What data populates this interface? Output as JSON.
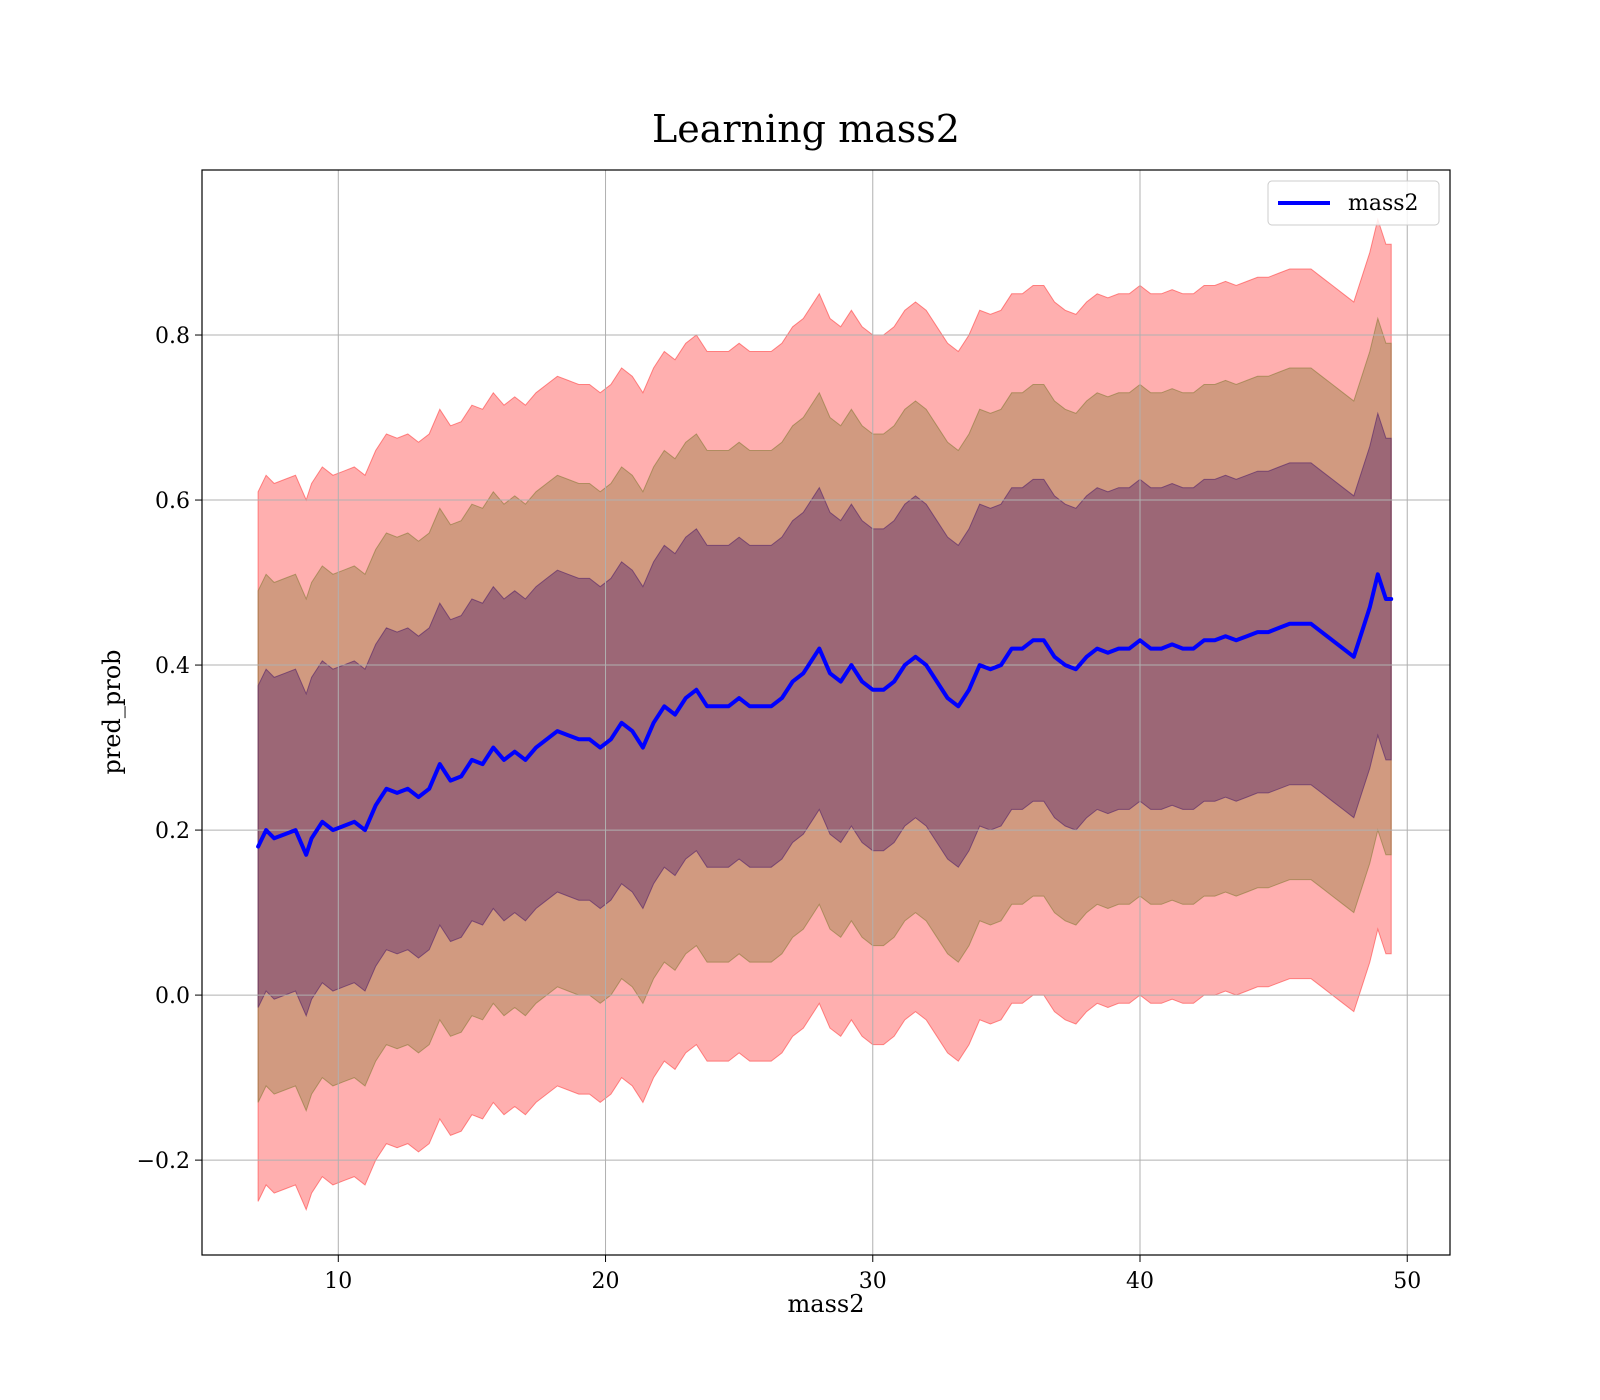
{
  "chart_data": {
    "type": "line",
    "title": "Learning mass2",
    "xlabel": "mass2",
    "ylabel": "pred_prob",
    "xlim": [
      4.9,
      51.6
    ],
    "ylim": [
      -0.315,
      1.0
    ],
    "xticks": [
      10,
      20,
      30,
      40,
      50
    ],
    "xtick_labels": [
      "10",
      "20",
      "30",
      "40",
      "50"
    ],
    "yticks": [
      -0.2,
      0.0,
      0.2,
      0.4,
      0.6,
      0.8
    ],
    "ytick_labels": [
      "−0.2",
      "0.0",
      "0.2",
      "0.4",
      "0.6",
      "0.8"
    ],
    "grid": true,
    "legend_position": "top-right",
    "series": [
      {
        "name": "mass2",
        "color": "#0000ff",
        "x": [
          7.0,
          7.3,
          7.6,
          8.0,
          8.4,
          8.8,
          9.0,
          9.4,
          9.8,
          10.2,
          10.6,
          11.0,
          11.4,
          11.8,
          12.2,
          12.6,
          13.0,
          13.4,
          13.8,
          14.2,
          14.6,
          15.0,
          15.4,
          15.8,
          16.2,
          16.6,
          17.0,
          17.4,
          17.8,
          18.2,
          18.6,
          19.0,
          19.4,
          19.8,
          20.2,
          20.6,
          21.0,
          21.4,
          21.8,
          22.2,
          22.6,
          23.0,
          23.4,
          23.8,
          24.2,
          24.6,
          25.0,
          25.4,
          25.8,
          26.2,
          26.6,
          27.0,
          27.4,
          27.8,
          28.0,
          28.4,
          28.8,
          29.2,
          29.6,
          30.0,
          30.4,
          30.8,
          31.2,
          31.6,
          32.0,
          32.4,
          32.8,
          33.2,
          33.6,
          34.0,
          34.4,
          34.8,
          35.2,
          35.6,
          36.0,
          36.4,
          36.8,
          37.2,
          37.6,
          38.0,
          38.4,
          38.8,
          39.2,
          39.6,
          40.0,
          40.4,
          40.8,
          41.2,
          41.6,
          42.0,
          42.4,
          42.8,
          43.2,
          43.6,
          44.0,
          44.4,
          44.8,
          45.2,
          45.6,
          46.0,
          46.4,
          46.8,
          47.2,
          47.6,
          48.0,
          48.3,
          48.6,
          48.9,
          49.2,
          49.4
        ],
        "y": [
          0.18,
          0.2,
          0.19,
          0.195,
          0.2,
          0.17,
          0.19,
          0.21,
          0.2,
          0.205,
          0.21,
          0.2,
          0.23,
          0.25,
          0.245,
          0.25,
          0.24,
          0.25,
          0.28,
          0.26,
          0.265,
          0.285,
          0.28,
          0.3,
          0.285,
          0.295,
          0.285,
          0.3,
          0.31,
          0.32,
          0.315,
          0.31,
          0.31,
          0.3,
          0.31,
          0.33,
          0.32,
          0.3,
          0.33,
          0.35,
          0.34,
          0.36,
          0.37,
          0.35,
          0.35,
          0.35,
          0.36,
          0.35,
          0.35,
          0.35,
          0.36,
          0.38,
          0.39,
          0.41,
          0.42,
          0.39,
          0.38,
          0.4,
          0.38,
          0.37,
          0.37,
          0.38,
          0.4,
          0.41,
          0.4,
          0.38,
          0.36,
          0.35,
          0.37,
          0.4,
          0.395,
          0.4,
          0.42,
          0.42,
          0.43,
          0.43,
          0.41,
          0.4,
          0.395,
          0.41,
          0.42,
          0.415,
          0.42,
          0.42,
          0.43,
          0.42,
          0.42,
          0.425,
          0.42,
          0.42,
          0.43,
          0.43,
          0.435,
          0.43,
          0.435,
          0.44,
          0.44,
          0.445,
          0.45,
          0.45,
          0.45,
          0.44,
          0.43,
          0.42,
          0.41,
          0.44,
          0.47,
          0.51,
          0.48,
          0.48
        ]
      }
    ],
    "bands": [
      {
        "color": "#ff4d4d",
        "opacity": 0.45,
        "half_width": [
          0.43,
          0.43,
          0.43,
          0.43,
          0.43,
          0.43,
          0.43,
          0.43,
          0.43,
          0.43,
          0.43,
          0.43,
          0.43,
          0.43,
          0.43,
          0.43,
          0.43,
          0.43,
          0.43,
          0.43,
          0.43,
          0.43,
          0.43,
          0.43,
          0.43,
          0.43,
          0.43,
          0.43,
          0.43,
          0.43,
          0.43,
          0.43,
          0.43,
          0.43,
          0.43,
          0.43,
          0.43,
          0.43,
          0.43,
          0.43,
          0.43,
          0.43,
          0.43,
          0.43,
          0.43,
          0.43,
          0.43,
          0.43,
          0.43,
          0.43,
          0.43,
          0.43,
          0.43,
          0.43,
          0.43,
          0.43,
          0.43,
          0.43,
          0.43,
          0.43,
          0.43,
          0.43,
          0.43,
          0.43,
          0.43,
          0.43,
          0.43,
          0.43,
          0.43,
          0.43,
          0.43,
          0.43,
          0.43,
          0.43,
          0.43,
          0.43,
          0.43,
          0.43,
          0.43,
          0.43,
          0.43,
          0.43,
          0.43,
          0.43,
          0.43,
          0.43,
          0.43,
          0.43,
          0.43,
          0.43,
          0.43,
          0.43,
          0.43,
          0.43,
          0.43,
          0.43,
          0.43,
          0.43,
          0.43,
          0.43,
          0.43,
          0.43,
          0.43,
          0.43,
          0.43,
          0.43,
          0.43,
          0.43,
          0.43,
          0.43
        ]
      },
      {
        "color": "#8b7b3a",
        "opacity": 0.4,
        "half_width": [
          0.31,
          0.31,
          0.31,
          0.31,
          0.31,
          0.31,
          0.31,
          0.31,
          0.31,
          0.31,
          0.31,
          0.31,
          0.31,
          0.31,
          0.31,
          0.31,
          0.31,
          0.31,
          0.31,
          0.31,
          0.31,
          0.31,
          0.31,
          0.31,
          0.31,
          0.31,
          0.31,
          0.31,
          0.31,
          0.31,
          0.31,
          0.31,
          0.31,
          0.31,
          0.31,
          0.31,
          0.31,
          0.31,
          0.31,
          0.31,
          0.31,
          0.31,
          0.31,
          0.31,
          0.31,
          0.31,
          0.31,
          0.31,
          0.31,
          0.31,
          0.31,
          0.31,
          0.31,
          0.31,
          0.31,
          0.31,
          0.31,
          0.31,
          0.31,
          0.31,
          0.31,
          0.31,
          0.31,
          0.31,
          0.31,
          0.31,
          0.31,
          0.31,
          0.31,
          0.31,
          0.31,
          0.31,
          0.31,
          0.31,
          0.31,
          0.31,
          0.31,
          0.31,
          0.31,
          0.31,
          0.31,
          0.31,
          0.31,
          0.31,
          0.31,
          0.31,
          0.31,
          0.31,
          0.31,
          0.31,
          0.31,
          0.31,
          0.31,
          0.31,
          0.31,
          0.31,
          0.31,
          0.31,
          0.31,
          0.31,
          0.31,
          0.31,
          0.31,
          0.31,
          0.31,
          0.31,
          0.31,
          0.31,
          0.31,
          0.31
        ]
      },
      {
        "color": "#5a2a6a",
        "opacity": 0.45,
        "half_width": [
          0.195,
          0.195,
          0.195,
          0.195,
          0.195,
          0.195,
          0.195,
          0.195,
          0.195,
          0.195,
          0.195,
          0.195,
          0.195,
          0.195,
          0.195,
          0.195,
          0.195,
          0.195,
          0.195,
          0.195,
          0.195,
          0.195,
          0.195,
          0.195,
          0.195,
          0.195,
          0.195,
          0.195,
          0.195,
          0.195,
          0.195,
          0.195,
          0.195,
          0.195,
          0.195,
          0.195,
          0.195,
          0.195,
          0.195,
          0.195,
          0.195,
          0.195,
          0.195,
          0.195,
          0.195,
          0.195,
          0.195,
          0.195,
          0.195,
          0.195,
          0.195,
          0.195,
          0.195,
          0.195,
          0.195,
          0.195,
          0.195,
          0.195,
          0.195,
          0.195,
          0.195,
          0.195,
          0.195,
          0.195,
          0.195,
          0.195,
          0.195,
          0.195,
          0.195,
          0.195,
          0.195,
          0.195,
          0.195,
          0.195,
          0.195,
          0.195,
          0.195,
          0.195,
          0.195,
          0.195,
          0.195,
          0.195,
          0.195,
          0.195,
          0.195,
          0.195,
          0.195,
          0.195,
          0.195,
          0.195,
          0.195,
          0.195,
          0.195,
          0.195,
          0.195,
          0.195,
          0.195,
          0.195,
          0.195,
          0.195,
          0.195,
          0.195,
          0.195,
          0.195,
          0.195,
          0.195,
          0.195,
          0.195,
          0.195,
          0.195
        ]
      }
    ]
  }
}
